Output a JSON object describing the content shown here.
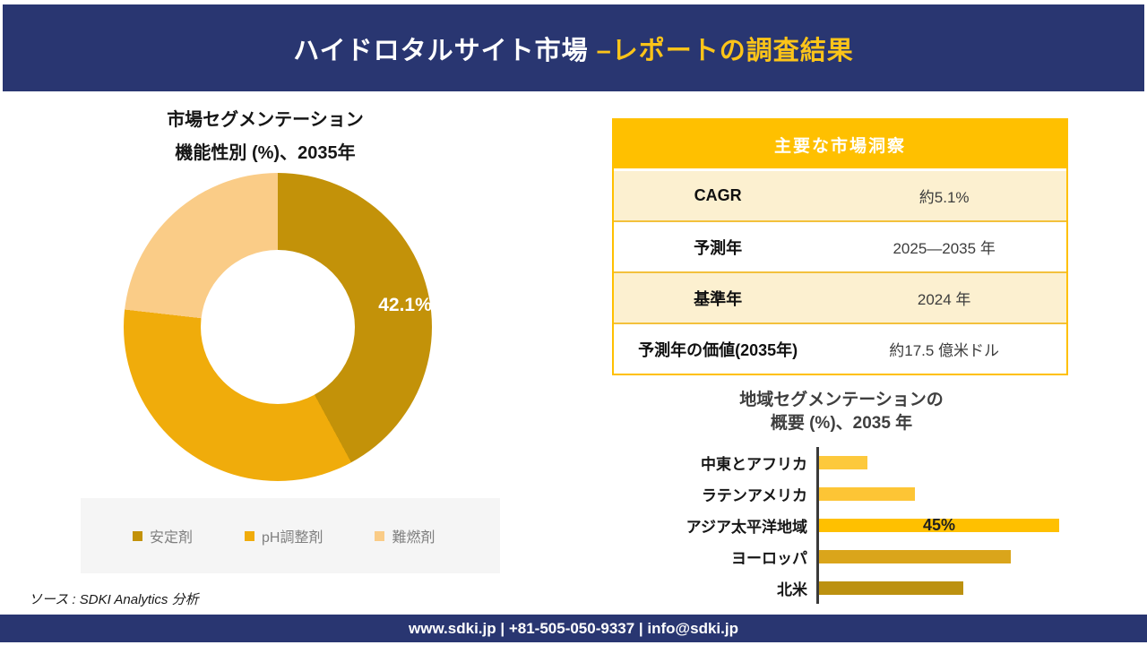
{
  "header": {
    "title_main": "ハイドロタルサイト市場 ",
    "title_accent": "–レポートの調査結果"
  },
  "donut": {
    "title_line1": "市場セグメンテーション",
    "title_line2": "機能性別 (%)、2035年",
    "data_label": "42.1%"
  },
  "insights_table": {
    "header": "主要な市場洞察",
    "rows": [
      {
        "label": "CAGR",
        "value": "約5.1%"
      },
      {
        "label": "予測年",
        "value": "2025—2035 年"
      },
      {
        "label": "基準年",
        "value": "2024 年"
      },
      {
        "label": "予測年の価値(2035年)",
        "value": "約17.5 億米ドル"
      }
    ]
  },
  "bar_section": {
    "title_line1": "地域セグメンテーションの",
    "title_line2": "概要 (%)、2035 年"
  },
  "source_text": "ソース : SDKI Analytics 分析",
  "footer_text": "www.sdki.jp | +81-505-050-9337 | info@sdki.jp",
  "colors": {
    "navy": "#293671",
    "header_accent_gold": "#FCC419",
    "table_header_amber": "#FFC000",
    "table_row_cream": "#FCF0D0"
  },
  "chart_data": [
    {
      "type": "pie",
      "subtype": "donut",
      "title": "市場セグメンテーション 機能性別 (%)、2035年",
      "categories": [
        "安定剤",
        "pH調整剤",
        "難燃剤"
      ],
      "values": [
        42.1,
        34.7,
        23.2
      ],
      "value_labels": [
        "42.1%",
        "",
        ""
      ],
      "colors": [
        "#C39209",
        "#F0AC0B",
        "#FACC87"
      ],
      "legend_position": "bottom",
      "note": "only 42.1% labeled on chart; other slice values estimated from arc angles"
    },
    {
      "type": "bar",
      "orientation": "horizontal",
      "title": "地域セグメンテーションの概要 (%)、2035 年",
      "categories": [
        "中東とアフリカ",
        "ラテンアメリカ",
        "アジア太平洋地域",
        "ヨーロッパ",
        "北米"
      ],
      "values": [
        9,
        18,
        45,
        36,
        27
      ],
      "value_labels": [
        "",
        "",
        "45%",
        "",
        ""
      ],
      "colors": [
        "#FDC93C",
        "#FDC535",
        "#FFC000",
        "#DAA51B",
        "#BC9110"
      ],
      "xlim": [
        0,
        50
      ],
      "grid": false,
      "note": "only 45% labeled on chart; other bar values estimated from bar lengths"
    }
  ]
}
